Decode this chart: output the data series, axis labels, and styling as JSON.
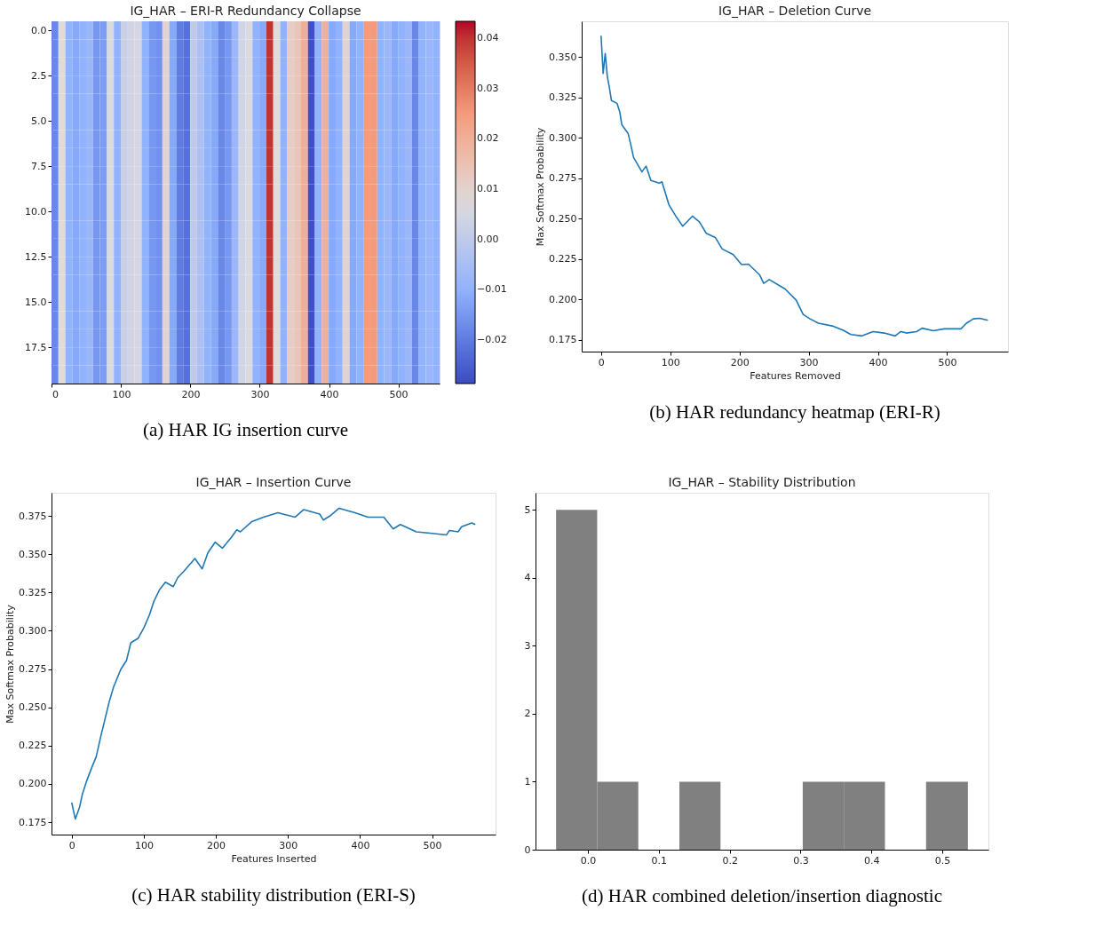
{
  "chart_data": [
    {
      "type": "heatmap",
      "title": "IG_HAR – ERI-R Redundancy Collapse",
      "annotations": [
        "(a) HAR IG insertion curve"
      ],
      "xlim": [
        -0.5,
        559.5
      ],
      "xticks": [
        0,
        100,
        200,
        300,
        400,
        500
      ],
      "ylim": [
        19.5,
        -0.5
      ],
      "yticks": [
        {
          "value": 0,
          "label": "0.0"
        },
        {
          "value": 2.5,
          "label": "2.5"
        },
        {
          "value": 5,
          "label": "5.0"
        },
        {
          "value": 7.5,
          "label": "7.5"
        },
        {
          "value": 10,
          "label": "10.0"
        },
        {
          "value": 12.5,
          "label": "12.5"
        },
        {
          "value": 15,
          "label": "15.0"
        },
        {
          "value": 17.5,
          "label": "17.5"
        }
      ],
      "clim": [
        -0.0287,
        0.0434
      ],
      "cticks": [
        {
          "value": -0.02,
          "label": "−0.02"
        },
        {
          "value": -0.01,
          "label": "−0.01"
        },
        {
          "value": 0,
          "label": "0.00"
        },
        {
          "value": 0.01,
          "label": "0.01"
        },
        {
          "value": 0.02,
          "label": "0.02"
        },
        {
          "value": 0.03,
          "label": "0.03"
        },
        {
          "value": 0.04,
          "label": "0.04"
        }
      ],
      "cells": [
        [
          -0.018,
          0.008,
          -0.01,
          -0.012,
          -0.01,
          -0.008,
          -0.015,
          -0.014,
          0.006,
          -0.01,
          0.002,
          0.004,
          0.005,
          -0.01,
          -0.015,
          -0.016,
          0.01,
          -0.012,
          -0.02,
          -0.022,
          0.0,
          -0.004,
          -0.01,
          -0.012,
          -0.018,
          -0.015,
          -0.008,
          0.004,
          0.006,
          -0.01,
          -0.012,
          0.04,
          0.008,
          -0.01,
          0.012,
          0.014,
          0.02,
          -0.028,
          -0.01,
          0.02,
          -0.012,
          -0.01,
          0.01,
          -0.012,
          -0.01,
          0.025,
          0.025,
          -0.01,
          -0.008,
          -0.012,
          -0.01,
          -0.008,
          -0.018,
          -0.01,
          -0.008,
          -0.01
        ],
        [
          -0.018,
          0.008,
          -0.01,
          -0.012,
          -0.01,
          -0.008,
          -0.015,
          -0.014,
          0.006,
          -0.01,
          0.002,
          0.004,
          0.005,
          -0.01,
          -0.015,
          -0.016,
          0.01,
          -0.012,
          -0.02,
          -0.022,
          0.0,
          -0.004,
          -0.01,
          -0.012,
          -0.018,
          -0.015,
          -0.008,
          0.004,
          0.006,
          -0.01,
          -0.012,
          0.04,
          0.008,
          -0.01,
          0.012,
          0.014,
          0.02,
          -0.028,
          -0.01,
          0.02,
          -0.012,
          -0.01,
          0.01,
          -0.012,
          -0.01,
          0.025,
          0.025,
          -0.01,
          -0.008,
          -0.012,
          -0.01,
          -0.008,
          -0.018,
          -0.01,
          -0.008,
          -0.01
        ],
        [
          -0.018,
          0.008,
          -0.01,
          -0.012,
          -0.01,
          -0.008,
          -0.015,
          -0.014,
          0.006,
          -0.01,
          0.002,
          0.004,
          0.005,
          -0.01,
          -0.015,
          -0.016,
          0.01,
          -0.012,
          -0.02,
          -0.022,
          0.0,
          -0.004,
          -0.01,
          -0.012,
          -0.018,
          -0.015,
          -0.008,
          0.004,
          0.006,
          -0.01,
          -0.012,
          0.04,
          0.008,
          -0.01,
          0.012,
          0.014,
          0.02,
          -0.028,
          -0.01,
          0.02,
          -0.012,
          -0.01,
          0.01,
          -0.012,
          -0.01,
          0.025,
          0.025,
          -0.01,
          -0.008,
          -0.012,
          -0.01,
          -0.008,
          -0.018,
          -0.01,
          -0.008,
          -0.01
        ],
        [
          -0.018,
          0.008,
          -0.01,
          -0.012,
          -0.01,
          -0.008,
          -0.015,
          -0.014,
          0.006,
          -0.01,
          0.002,
          0.004,
          0.005,
          -0.01,
          -0.015,
          -0.016,
          0.01,
          -0.012,
          -0.02,
          -0.022,
          0.0,
          -0.004,
          -0.01,
          -0.012,
          -0.018,
          -0.015,
          -0.008,
          0.004,
          0.006,
          -0.01,
          -0.012,
          0.04,
          0.008,
          -0.01,
          0.012,
          0.014,
          0.02,
          -0.028,
          -0.01,
          0.02,
          -0.012,
          -0.01,
          0.01,
          -0.012,
          -0.01,
          0.025,
          0.025,
          -0.01,
          -0.008,
          -0.012,
          -0.01,
          -0.008,
          -0.018,
          -0.01,
          -0.008,
          -0.01
        ],
        [
          -0.018,
          0.008,
          -0.01,
          -0.012,
          -0.01,
          -0.008,
          -0.015,
          -0.014,
          0.006,
          -0.01,
          0.002,
          0.004,
          0.005,
          -0.01,
          -0.015,
          -0.016,
          0.01,
          -0.012,
          -0.02,
          -0.022,
          0.0,
          -0.004,
          -0.01,
          -0.012,
          -0.018,
          -0.015,
          -0.008,
          0.004,
          0.006,
          -0.01,
          -0.012,
          0.04,
          0.008,
          -0.01,
          0.012,
          0.014,
          0.02,
          -0.028,
          -0.01,
          0.02,
          -0.012,
          -0.01,
          0.01,
          -0.012,
          -0.01,
          0.025,
          0.025,
          -0.01,
          -0.008,
          -0.012,
          -0.01,
          -0.008,
          -0.018,
          -0.01,
          -0.008,
          -0.01
        ],
        [
          -0.018,
          0.008,
          -0.01,
          -0.012,
          -0.01,
          -0.008,
          -0.015,
          -0.014,
          0.006,
          -0.01,
          0.002,
          0.004,
          0.005,
          -0.01,
          -0.015,
          -0.016,
          0.01,
          -0.012,
          -0.02,
          -0.022,
          0.0,
          -0.004,
          -0.01,
          -0.012,
          -0.018,
          -0.015,
          -0.008,
          0.004,
          0.006,
          -0.01,
          -0.012,
          0.04,
          0.008,
          -0.01,
          0.012,
          0.014,
          0.02,
          -0.028,
          -0.01,
          0.02,
          -0.012,
          -0.01,
          0.01,
          -0.012,
          -0.01,
          0.025,
          0.025,
          -0.01,
          -0.008,
          -0.012,
          -0.01,
          -0.008,
          -0.018,
          -0.01,
          -0.008,
          -0.01
        ],
        [
          -0.018,
          0.008,
          -0.01,
          -0.012,
          -0.01,
          -0.008,
          -0.015,
          -0.014,
          0.006,
          -0.01,
          0.002,
          0.004,
          0.005,
          -0.01,
          -0.015,
          -0.016,
          0.01,
          -0.012,
          -0.02,
          -0.022,
          0.0,
          -0.004,
          -0.01,
          -0.012,
          -0.018,
          -0.015,
          -0.008,
          0.004,
          0.006,
          -0.01,
          -0.012,
          0.04,
          0.008,
          -0.01,
          0.012,
          0.014,
          0.02,
          -0.028,
          -0.01,
          0.02,
          -0.012,
          -0.01,
          0.01,
          -0.012,
          -0.01,
          0.025,
          0.025,
          -0.01,
          -0.008,
          -0.012,
          -0.01,
          -0.008,
          -0.018,
          -0.01,
          -0.008,
          -0.01
        ],
        [
          -0.018,
          0.008,
          -0.01,
          -0.012,
          -0.01,
          -0.008,
          -0.015,
          -0.014,
          0.006,
          -0.01,
          0.002,
          0.004,
          0.005,
          -0.01,
          -0.015,
          -0.016,
          0.01,
          -0.012,
          -0.02,
          -0.022,
          0.0,
          -0.004,
          -0.01,
          -0.012,
          -0.018,
          -0.015,
          -0.008,
          0.004,
          0.006,
          -0.01,
          -0.012,
          0.04,
          0.008,
          -0.01,
          0.012,
          0.014,
          0.02,
          -0.028,
          -0.01,
          0.02,
          -0.012,
          -0.01,
          0.01,
          -0.012,
          -0.01,
          0.025,
          0.025,
          -0.01,
          -0.008,
          -0.012,
          -0.01,
          -0.008,
          -0.018,
          -0.01,
          -0.008,
          -0.01
        ],
        [
          -0.018,
          0.008,
          -0.01,
          -0.012,
          -0.01,
          -0.008,
          -0.015,
          -0.014,
          0.006,
          -0.01,
          0.002,
          0.004,
          0.005,
          -0.01,
          -0.015,
          -0.016,
          0.01,
          -0.012,
          -0.02,
          -0.022,
          0.0,
          -0.004,
          -0.01,
          -0.012,
          -0.018,
          -0.015,
          -0.008,
          0.004,
          0.006,
          -0.01,
          -0.012,
          0.04,
          0.008,
          -0.01,
          0.012,
          0.014,
          0.02,
          -0.028,
          -0.01,
          0.02,
          -0.012,
          -0.01,
          0.01,
          -0.012,
          -0.01,
          0.025,
          0.025,
          -0.01,
          -0.008,
          -0.012,
          -0.01,
          -0.008,
          -0.018,
          -0.01,
          -0.008,
          -0.01
        ],
        [
          -0.018,
          0.008,
          -0.01,
          -0.012,
          -0.01,
          -0.008,
          -0.015,
          -0.014,
          0.006,
          -0.01,
          0.002,
          0.004,
          0.005,
          -0.01,
          -0.015,
          -0.016,
          0.01,
          -0.012,
          -0.02,
          -0.022,
          0.0,
          -0.004,
          -0.01,
          -0.012,
          -0.018,
          -0.015,
          -0.008,
          0.004,
          0.006,
          -0.01,
          -0.012,
          0.04,
          0.008,
          -0.01,
          0.012,
          0.014,
          0.02,
          -0.028,
          -0.01,
          0.02,
          -0.012,
          -0.01,
          0.01,
          -0.012,
          -0.01,
          0.025,
          0.025,
          -0.01,
          -0.008,
          -0.012,
          -0.01,
          -0.008,
          -0.018,
          -0.01,
          -0.008,
          -0.01
        ],
        [
          -0.018,
          0.008,
          -0.01,
          -0.012,
          -0.01,
          -0.008,
          -0.015,
          -0.014,
          0.006,
          -0.01,
          0.002,
          0.004,
          0.005,
          -0.01,
          -0.015,
          -0.016,
          0.01,
          -0.012,
          -0.02,
          -0.022,
          0.0,
          -0.004,
          -0.01,
          -0.012,
          -0.018,
          -0.015,
          -0.008,
          0.004,
          0.006,
          -0.01,
          -0.012,
          0.04,
          0.008,
          -0.01,
          0.012,
          0.014,
          0.02,
          -0.028,
          -0.01,
          0.02,
          -0.012,
          -0.01,
          0.01,
          -0.012,
          -0.01,
          0.025,
          0.025,
          -0.01,
          -0.008,
          -0.012,
          -0.01,
          -0.008,
          -0.018,
          -0.01,
          -0.008,
          -0.01
        ],
        [
          -0.018,
          0.008,
          -0.01,
          -0.012,
          -0.01,
          -0.008,
          -0.015,
          -0.014,
          0.006,
          -0.01,
          0.002,
          0.004,
          0.005,
          -0.01,
          -0.015,
          -0.016,
          0.01,
          -0.012,
          -0.02,
          -0.022,
          0.0,
          -0.004,
          -0.01,
          -0.012,
          -0.018,
          -0.015,
          -0.008,
          0.004,
          0.006,
          -0.01,
          -0.012,
          0.04,
          0.008,
          -0.01,
          0.012,
          0.014,
          0.02,
          -0.028,
          -0.01,
          0.02,
          -0.012,
          -0.01,
          0.01,
          -0.012,
          -0.01,
          0.025,
          0.025,
          -0.01,
          -0.008,
          -0.012,
          -0.01,
          -0.008,
          -0.018,
          -0.01,
          -0.008,
          -0.01
        ],
        [
          -0.018,
          0.008,
          -0.01,
          -0.012,
          -0.01,
          -0.008,
          -0.015,
          -0.014,
          0.006,
          -0.01,
          0.002,
          0.004,
          0.005,
          -0.01,
          -0.015,
          -0.016,
          0.01,
          -0.012,
          -0.02,
          -0.022,
          0.0,
          -0.004,
          -0.01,
          -0.012,
          -0.018,
          -0.015,
          -0.008,
          0.004,
          0.006,
          -0.01,
          -0.012,
          0.04,
          0.008,
          -0.01,
          0.012,
          0.014,
          0.02,
          -0.028,
          -0.01,
          0.02,
          -0.012,
          -0.01,
          0.01,
          -0.012,
          -0.01,
          0.025,
          0.025,
          -0.01,
          -0.008,
          -0.012,
          -0.01,
          -0.008,
          -0.018,
          -0.01,
          -0.008,
          -0.01
        ],
        [
          -0.018,
          0.008,
          -0.01,
          -0.012,
          -0.01,
          -0.008,
          -0.015,
          -0.014,
          0.006,
          -0.01,
          0.002,
          0.004,
          0.005,
          -0.01,
          -0.015,
          -0.016,
          0.01,
          -0.012,
          -0.02,
          -0.022,
          0.0,
          -0.004,
          -0.01,
          -0.012,
          -0.018,
          -0.015,
          -0.008,
          0.004,
          0.006,
          -0.01,
          -0.012,
          0.04,
          0.008,
          -0.01,
          0.012,
          0.014,
          0.02,
          -0.028,
          -0.01,
          0.02,
          -0.012,
          -0.01,
          0.01,
          -0.012,
          -0.01,
          0.025,
          0.025,
          -0.01,
          -0.008,
          -0.012,
          -0.01,
          -0.008,
          -0.018,
          -0.01,
          -0.008,
          -0.01
        ],
        [
          -0.018,
          0.008,
          -0.01,
          -0.012,
          -0.01,
          -0.008,
          -0.015,
          -0.014,
          0.006,
          -0.01,
          0.002,
          0.004,
          0.005,
          -0.01,
          -0.015,
          -0.016,
          0.01,
          -0.012,
          -0.02,
          -0.022,
          0.0,
          -0.004,
          -0.01,
          -0.012,
          -0.018,
          -0.015,
          -0.008,
          0.004,
          0.006,
          -0.01,
          -0.012,
          0.04,
          0.008,
          -0.01,
          0.012,
          0.014,
          0.02,
          -0.028,
          -0.01,
          0.02,
          -0.012,
          -0.01,
          0.01,
          -0.012,
          -0.01,
          0.025,
          0.025,
          -0.01,
          -0.008,
          -0.012,
          -0.01,
          -0.008,
          -0.018,
          -0.01,
          -0.008,
          -0.01
        ],
        [
          -0.018,
          0.008,
          -0.01,
          -0.012,
          -0.01,
          -0.008,
          -0.015,
          -0.014,
          0.006,
          -0.01,
          0.002,
          0.004,
          0.005,
          -0.01,
          -0.015,
          -0.016,
          0.01,
          -0.012,
          -0.02,
          -0.022,
          0.0,
          -0.004,
          -0.01,
          -0.012,
          -0.018,
          -0.015,
          -0.008,
          0.004,
          0.006,
          -0.01,
          -0.012,
          0.04,
          0.008,
          -0.01,
          0.012,
          0.014,
          0.02,
          -0.028,
          -0.01,
          0.02,
          -0.012,
          -0.01,
          0.01,
          -0.012,
          -0.01,
          0.025,
          0.025,
          -0.01,
          -0.008,
          -0.012,
          -0.01,
          -0.008,
          -0.018,
          -0.01,
          -0.008,
          -0.01
        ],
        [
          -0.018,
          0.008,
          -0.01,
          -0.012,
          -0.01,
          -0.008,
          -0.015,
          -0.014,
          0.006,
          -0.01,
          0.002,
          0.004,
          0.005,
          -0.01,
          -0.015,
          -0.016,
          0.01,
          -0.012,
          -0.02,
          -0.022,
          0.0,
          -0.004,
          -0.01,
          -0.012,
          -0.018,
          -0.015,
          -0.008,
          0.004,
          0.006,
          -0.01,
          -0.012,
          0.04,
          0.008,
          -0.01,
          0.012,
          0.014,
          0.02,
          -0.028,
          -0.01,
          0.02,
          -0.012,
          -0.01,
          0.01,
          -0.012,
          -0.01,
          0.025,
          0.025,
          -0.01,
          -0.008,
          -0.012,
          -0.01,
          -0.008,
          -0.018,
          -0.01,
          -0.008,
          -0.01
        ],
        [
          -0.018,
          0.008,
          -0.01,
          -0.012,
          -0.01,
          -0.008,
          -0.015,
          -0.014,
          0.006,
          -0.01,
          0.002,
          0.004,
          0.005,
          -0.01,
          -0.015,
          -0.016,
          0.01,
          -0.012,
          -0.02,
          -0.022,
          0.0,
          -0.004,
          -0.01,
          -0.012,
          -0.018,
          -0.015,
          -0.008,
          0.004,
          0.006,
          -0.01,
          -0.012,
          0.04,
          0.008,
          -0.01,
          0.012,
          0.014,
          0.02,
          -0.028,
          -0.01,
          0.02,
          -0.012,
          -0.01,
          0.01,
          -0.012,
          -0.01,
          0.025,
          0.025,
          -0.01,
          -0.008,
          -0.012,
          -0.01,
          -0.008,
          -0.018,
          -0.01,
          -0.008,
          -0.01
        ],
        [
          -0.018,
          0.008,
          -0.01,
          -0.012,
          -0.01,
          -0.008,
          -0.015,
          -0.014,
          0.006,
          -0.01,
          0.002,
          0.004,
          0.005,
          -0.01,
          -0.015,
          -0.016,
          0.01,
          -0.012,
          -0.02,
          -0.022,
          0.0,
          -0.004,
          -0.01,
          -0.012,
          -0.018,
          -0.015,
          -0.008,
          0.004,
          0.006,
          -0.01,
          -0.012,
          0.04,
          0.008,
          -0.01,
          0.012,
          0.014,
          0.02,
          -0.028,
          -0.01,
          0.02,
          -0.012,
          -0.01,
          0.01,
          -0.012,
          -0.01,
          0.025,
          0.025,
          -0.01,
          -0.008,
          -0.012,
          -0.01,
          -0.008,
          -0.018,
          -0.01,
          -0.008,
          -0.01
        ],
        [
          -0.018,
          0.008,
          -0.01,
          -0.012,
          -0.01,
          -0.008,
          -0.015,
          -0.014,
          0.006,
          -0.01,
          0.002,
          0.004,
          0.005,
          -0.01,
          -0.015,
          -0.016,
          0.01,
          -0.012,
          -0.02,
          -0.022,
          0.0,
          -0.004,
          -0.01,
          -0.012,
          -0.018,
          -0.015,
          -0.008,
          0.004,
          0.006,
          -0.01,
          -0.012,
          0.04,
          0.008,
          -0.01,
          0.012,
          0.014,
          0.02,
          -0.028,
          -0.01,
          0.02,
          -0.012,
          -0.01,
          0.01,
          -0.012,
          -0.01,
          0.025,
          0.025,
          -0.01,
          -0.008,
          -0.012,
          -0.01,
          -0.008,
          -0.018,
          -0.01,
          -0.008,
          -0.01
        ]
      ]
    },
    {
      "type": "line",
      "title": "IG_HAR – Deletion Curve",
      "xlabel": "Features Removed",
      "ylabel": "Max Softmax Probability",
      "annotations": [
        "(b) HAR redundancy heatmap (ERI-R)"
      ],
      "xlim": [
        -28,
        588
      ],
      "xticks": [
        0,
        100,
        200,
        300,
        400,
        500
      ],
      "ylim": [
        0.1676,
        0.3722
      ],
      "yticks": [
        0.175,
        {
          "value": 0.2,
          "label": "0.200"
        },
        0.225,
        {
          "value": 0.25,
          "label": "0.250"
        },
        0.275,
        {
          "value": 0.3,
          "label": "0.300"
        },
        0.325,
        {
          "value": 0.35,
          "label": "0.350"
        }
      ],
      "x": [
        0,
        3,
        6,
        9,
        12,
        15,
        23,
        27,
        30,
        39,
        43,
        47,
        59,
        65,
        72,
        84,
        88,
        98,
        108,
        118,
        132,
        142,
        152,
        165,
        175,
        191,
        203,
        213,
        229,
        235,
        243,
        266,
        282,
        292,
        302,
        314,
        334,
        350,
        361,
        377,
        393,
        409,
        425,
        433,
        441,
        456,
        464,
        480,
        496,
        520,
        528,
        538,
        547,
        559
      ],
      "series": [
        {
          "color": "#1f77b4",
          "values": [
            0.3633,
            0.3399,
            0.3523,
            0.3382,
            0.3311,
            0.3231,
            0.3214,
            0.3161,
            0.3081,
            0.3028,
            0.2957,
            0.2878,
            0.2789,
            0.2825,
            0.2736,
            0.2719,
            0.2728,
            0.2586,
            0.2515,
            0.2453,
            0.2515,
            0.248,
            0.2409,
            0.2383,
            0.2312,
            0.2277,
            0.2215,
            0.2218,
            0.2152,
            0.2099,
            0.2122,
            0.2064,
            0.1994,
            0.1906,
            0.1879,
            0.1852,
            0.1835,
            0.1808,
            0.1782,
            0.1773,
            0.18,
            0.1791,
            0.1773,
            0.18,
            0.1791,
            0.18,
            0.1821,
            0.1805,
            0.1817,
            0.1817,
            0.1852,
            0.1879,
            0.1882,
            0.187
          ]
        }
      ]
    },
    {
      "type": "line",
      "title": "IG_HAR – Insertion Curve",
      "xlabel": "Features Inserted",
      "ylabel": "Max Softmax Probability",
      "annotations": [
        "(c) HAR stability distribution (ERI-S)"
      ],
      "xlim": [
        -28,
        588
      ],
      "xticks": [
        0,
        100,
        200,
        300,
        400,
        500
      ],
      "ylim": [
        0.1669,
        0.3901
      ],
      "yticks": [
        0.175,
        {
          "value": 0.2,
          "label": "0.200"
        },
        0.225,
        {
          "value": 0.25,
          "label": "0.250"
        },
        0.275,
        {
          "value": 0.3,
          "label": "0.300"
        },
        0.325,
        {
          "value": 0.35,
          "label": "0.350"
        },
        0.375
      ],
      "x": [
        0,
        5,
        11,
        15,
        21,
        28,
        34,
        40,
        46,
        52,
        58,
        68,
        76,
        82,
        92,
        100,
        108,
        114,
        122,
        130,
        141,
        147,
        155,
        171,
        181,
        189,
        199,
        209,
        221,
        229,
        234,
        250,
        266,
        286,
        310,
        322,
        344,
        349,
        359,
        371,
        393,
        411,
        433,
        446,
        456,
        478,
        500,
        520,
        524,
        536,
        541,
        555,
        560
      ],
      "series": [
        {
          "color": "#1f77b4",
          "values": [
            0.1878,
            0.1771,
            0.1849,
            0.1936,
            0.2022,
            0.2109,
            0.2177,
            0.2303,
            0.2419,
            0.2535,
            0.2631,
            0.2747,
            0.2805,
            0.2921,
            0.295,
            0.3018,
            0.3105,
            0.3192,
            0.3269,
            0.3317,
            0.3288,
            0.3346,
            0.3385,
            0.3472,
            0.3404,
            0.351,
            0.3578,
            0.3539,
            0.3607,
            0.3659,
            0.3646,
            0.3713,
            0.3742,
            0.3771,
            0.3742,
            0.3791,
            0.3762,
            0.3723,
            0.3752,
            0.38,
            0.3771,
            0.3742,
            0.3742,
            0.3665,
            0.3694,
            0.3646,
            0.3636,
            0.3626,
            0.3655,
            0.3646,
            0.3679,
            0.3704,
            0.3694
          ]
        }
      ]
    },
    {
      "type": "histogram",
      "title": "IG_HAR – Stability Distribution",
      "annotations": [
        "(d) HAR combined deletion/insertion diagnostic"
      ],
      "xlim": [
        -0.074,
        0.565
      ],
      "xticks": [
        {
          "value": 0,
          "label": "0.0"
        },
        0.1,
        0.2,
        0.3,
        0.4,
        0.5
      ],
      "ylim": [
        0,
        5.25
      ],
      "yticks": [
        0,
        1,
        2,
        3,
        4,
        5
      ],
      "bins": [
        -0.045,
        0.013,
        0.071,
        0.129,
        0.187,
        0.303,
        0.361,
        0.419,
        0.477,
        0.536
      ],
      "values": [
        5,
        1,
        0,
        1,
        0,
        1,
        1,
        0,
        1
      ],
      "color": "#808080"
    }
  ]
}
